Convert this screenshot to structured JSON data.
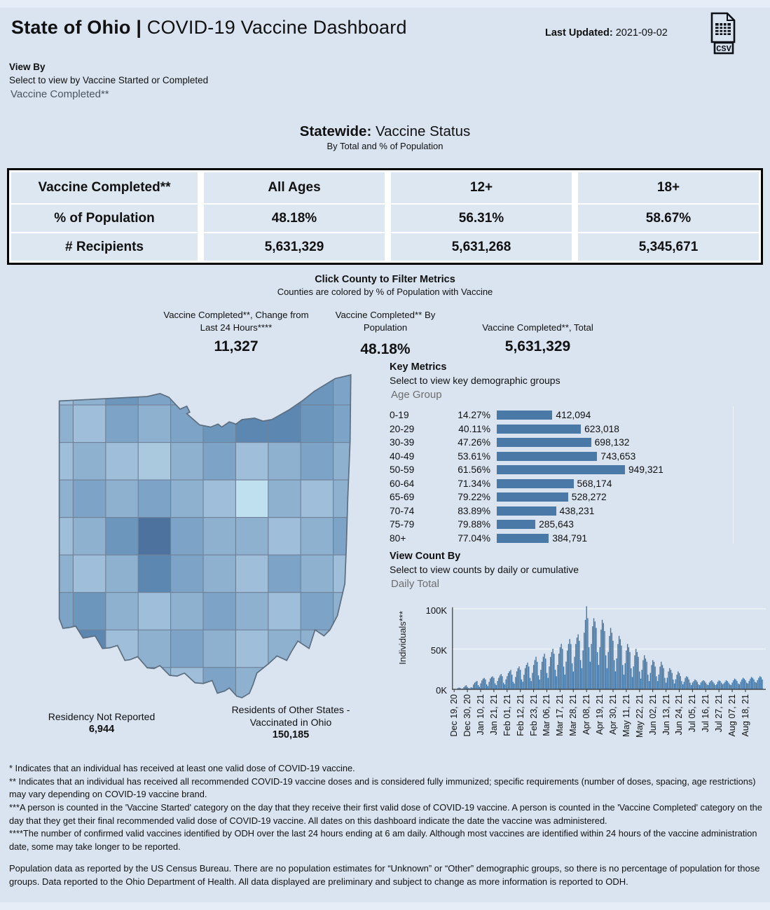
{
  "header": {
    "title_bold": "State of Ohio",
    "title_sep": "|",
    "title_rest": "COVID-19 Vaccine Dashboard",
    "last_updated_label": "Last Updated:",
    "last_updated_value": "2021-09-02",
    "csv_label": "CSV"
  },
  "view_by": {
    "label": "View By",
    "sublabel": "Select to view by Vaccine Started or Completed",
    "value": "Vaccine Completed**"
  },
  "statewide": {
    "title_bold": "Statewide:",
    "title_rest": "Vaccine Status",
    "subtitle": "By Total and % of Population",
    "table": {
      "row_header": "Vaccine Completed**",
      "columns": [
        "All Ages",
        "12+",
        "18+"
      ],
      "rows": [
        {
          "label": "% of Population",
          "values": [
            "48.18%",
            "56.31%",
            "58.67%"
          ]
        },
        {
          "label": "# Recipients",
          "values": [
            "5,631,329",
            "5,631,268",
            "5,345,671"
          ]
        }
      ]
    }
  },
  "county_filter": {
    "title": "Click County to Filter Metrics",
    "subtitle": "Counties are colored by % of Population with Vaccine"
  },
  "metrics": [
    {
      "label": "Vaccine Completed**, Change from Last 24 Hours****",
      "value": "11,327"
    },
    {
      "label": "Vaccine Completed** By Population",
      "value": "48.18%"
    },
    {
      "label": "Vaccine Completed**, Total",
      "value": "5,631,329"
    }
  ],
  "key_metrics": {
    "title": "Key Metrics",
    "subtitle": "Select to view key demographic groups",
    "dropdown_value": "Age Group"
  },
  "view_count": {
    "title": "View Count By",
    "subtitle": "Select to view counts by daily or cumulative",
    "dropdown_value": "Daily Total"
  },
  "residency": {
    "not_reported_label": "Residency Not Reported",
    "not_reported_value": "6,944",
    "other_states_label": "Residents of Other States - Vaccinated in Ohio",
    "other_states_value": "150,185"
  },
  "footnotes": [
    "* Indicates that an individual has received at least one valid dose of COVID-19 vaccine.",
    "** Indicates that an individual has received all recommended COVID-19 vaccine doses and is considered fully immunized; specific requirements (number of doses, spacing, age restrictions) may vary depending on COVID-19 vaccine brand.",
    "***A person is counted in the 'Vaccine Started' category on the day that they receive their first valid dose of COVID-19 vaccine.  A person is counted in the 'Vaccine Completed' category on the day that they get their final recommended valid dose of COVID-19 vaccine. All dates on this dashboard indicate the date the vaccine was administered.",
    "****The number of confirmed valid vaccines identified by ODH over the last 24 hours ending at 6 am daily. Although most vaccines are identified within 24 hours of the vaccine administration date, some may take longer to be reported."
  ],
  "population_note": "Population data as reported by the US Census Bureau. There are no population estimates for “Unknown” or “Other” demographic groups, so there is no percentage of population for those groups.  Data reported to the Ohio Department of Health.  All data displayed are preliminary and subject to change as more information is reported to ODH.",
  "colors": {
    "page_bg": "#d9e4f0",
    "bar_blue": "#4a79a8",
    "table_cell_bg": "#dde7f2",
    "map_outline": "#5c6e80",
    "map_county_stroke": "#70markup2"
  },
  "chart_data": [
    {
      "type": "bar",
      "orientation": "horizontal",
      "title": "Key Metrics by Age Group",
      "categories": [
        "0-19",
        "20-29",
        "30-39",
        "40-49",
        "50-59",
        "60-64",
        "65-69",
        "70-74",
        "75-79",
        "80+"
      ],
      "series": [
        {
          "name": "% of Population",
          "values": [
            14.27,
            40.11,
            47.26,
            53.61,
            61.56,
            71.34,
            79.22,
            83.89,
            79.88,
            77.04
          ]
        },
        {
          "name": "Vaccine Completed Count",
          "values": [
            412094,
            623018,
            698132,
            743653,
            949321,
            568174,
            528272,
            438231,
            285643,
            384791
          ]
        }
      ],
      "xmax": 949321,
      "legend_position": "none",
      "grid": false
    },
    {
      "type": "bar",
      "title": "Daily Total",
      "ylabel": "Individuals***",
      "yticks": [
        "0K",
        "50K",
        "100K"
      ],
      "ylim_k": [
        0,
        105
      ],
      "x_start": "Dec 19, 20",
      "x_tick_interval_days": 11,
      "x_tick_labels": [
        "Dec 19, 20",
        "Dec 30, 20",
        "Jan 10, 21",
        "Jan 21, 21",
        "Feb 01, 21",
        "Feb 12, 21",
        "Feb 23, 21",
        "Mar 06, 21",
        "Mar 17, 21",
        "Mar 28, 21",
        "Apr 08, 21",
        "Apr 19, 21",
        "Apr 30, 21",
        "May 11, 21",
        "May 22, 21",
        "Jun 02, 21",
        "Jun 13, 21",
        "Jun 24, 21",
        "Jul 05, 21",
        "Jul 16, 21",
        "Jul 27, 21",
        "Aug 07, 21",
        "Aug 18, 21"
      ],
      "values_k": [
        0.3,
        0.2,
        0.4,
        1.5,
        2.2,
        1.8,
        0.6,
        0.9,
        2.6,
        4,
        5.2,
        3.1,
        1.6,
        1.2,
        2.6,
        2.1,
        6,
        8.2,
        9.5,
        10.4,
        5.2,
        3.1,
        7.4,
        11,
        13.2,
        14.1,
        12.3,
        6.2,
        4.1,
        9.3,
        13.4,
        15.2,
        16.1,
        14.2,
        7.3,
        5.2,
        10.4,
        14.3,
        17.2,
        19.1,
        16.2,
        8.3,
        6.2,
        12.4,
        16.3,
        20.2,
        22.4,
        24.1,
        18.2,
        9.3,
        7.2,
        15.4,
        22.3,
        26.2,
        28.4,
        24.2,
        12.3,
        9.4,
        18.2,
        26.3,
        30.4,
        33.2,
        28.3,
        14.2,
        10.3,
        20.4,
        30.2,
        36.3,
        40.4,
        34.2,
        17.3,
        12.2,
        24.3,
        34.2,
        40.4,
        44.3,
        38.2,
        20.3,
        14.2,
        28.4,
        40.2,
        46.3,
        50.4,
        44.2,
        24.3,
        16.2,
        30.4,
        44.3,
        52.2,
        56.4,
        50.3,
        28.2,
        18.3,
        34.4,
        48.2,
        56.3,
        62.4,
        56.2,
        32.3,
        22.2,
        40.4,
        56.3,
        64.2,
        68.3,
        60.2,
        36.3,
        26.2,
        48.4,
        70.3,
        86.2,
        103,
        88.3,
        52.2,
        34.3,
        56.4,
        78.2,
        88.3,
        84.2,
        76.3,
        46.2,
        30.3,
        52.4,
        74.2,
        86.3,
        82.2,
        72.3,
        42.2,
        26.3,
        46.4,
        66.2,
        76.3,
        70.2,
        60.3,
        36.2,
        22.3,
        38.4,
        56.2,
        66.3,
        62.2,
        54.3,
        30.2,
        18.3,
        32.4,
        48.2,
        56.3,
        52.2,
        46.3,
        26.2,
        15.3,
        28.4,
        42.2,
        50.3,
        46.2,
        40.3,
        22.2,
        13.3,
        24.4,
        36.2,
        42.3,
        38.2,
        34.3,
        18.2,
        10.3,
        20.4,
        30.2,
        36.3,
        34.2,
        28.3,
        16.2,
        10.3,
        18.4,
        28.2,
        34.3,
        30.2,
        26.3,
        14.2,
        8.3,
        14.4,
        22.2,
        26.3,
        24.2,
        20.3,
        12.2,
        7.3,
        12.4,
        18.2,
        22.3,
        20.2,
        16.3,
        10.2,
        6.3,
        9.4,
        14.2,
        16.3,
        15.2,
        12.3,
        8.2,
        5.3,
        8.4,
        10.2,
        12.3,
        11.2,
        9.3,
        6.2,
        5.3,
        8.4,
        10.2,
        11.3,
        10.2,
        8.3,
        6.2,
        5.3,
        8.4,
        10.2,
        11.3,
        9.2,
        7.3,
        5.2,
        6.3,
        9.4,
        11.2,
        10.3,
        8.2,
        6.3,
        7.4,
        9.2,
        11.3,
        10.2,
        8.3,
        6.2,
        5.3,
        8.4,
        11.2,
        13.3,
        12.2,
        10.3,
        7.2,
        6.3,
        9.4,
        12.2,
        14.3,
        13.2,
        11.3,
        8.2,
        7.3,
        10.4,
        13.2,
        15.3,
        14.2,
        12.3,
        9.2,
        8.3,
        11.4,
        14.2,
        16.3,
        15.2,
        12.3
      ]
    }
  ],
  "map": {
    "description": "Ohio choropleth of counties colored by % of population with vaccine",
    "palette": [
      "#8fb1d0",
      "#9fbeda",
      "#7da4c7",
      "#6c96bc",
      "#5c87b0",
      "#aac9df",
      "#bfe0ee",
      "#4e729e",
      "#87accd"
    ],
    "cells": [
      "1032234432",
      "0120234432",
      "1015021020",
      "0202016010",
      "1037200102",
      "0104201201",
      "2301020120",
      "3410201002",
      "4210120100"
    ]
  }
}
